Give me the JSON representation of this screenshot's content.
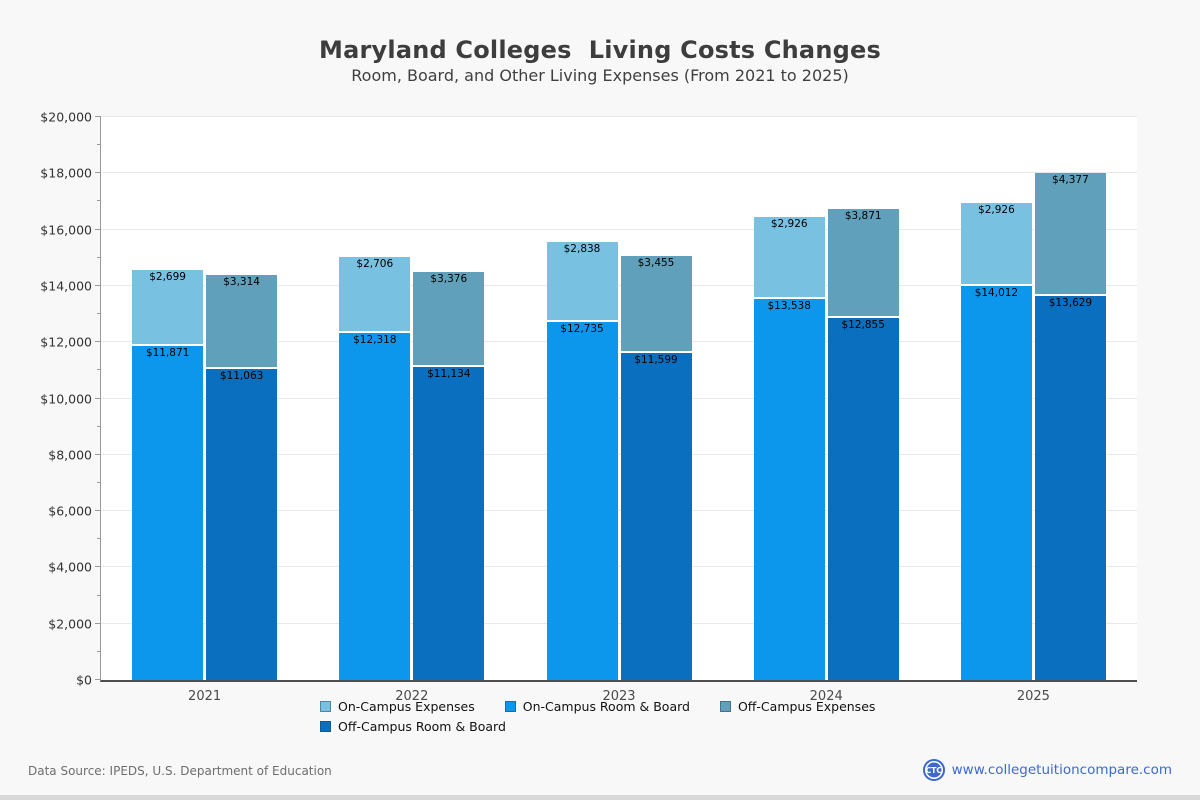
{
  "header": {
    "title": "Maryland Colleges  Living Costs Changes",
    "subtitle": "Room, Board, and Other Living Expenses (From 2021 to 2025)"
  },
  "chart_data": {
    "type": "bar",
    "stacked": true,
    "title": "Maryland Colleges  Living Costs Changes",
    "subtitle": "Room, Board, and Other Living Expenses (From 2021 to 2025)",
    "categories": [
      "2021",
      "2022",
      "2023",
      "2024",
      "2025"
    ],
    "series": [
      {
        "name": "On-Campus Room & Board",
        "stack": "on-campus",
        "color": "#0c97ec",
        "values": [
          11871,
          12318,
          12735,
          13538,
          14012
        ]
      },
      {
        "name": "On-Campus Expenses",
        "stack": "on-campus",
        "color": "#79c1e1",
        "values": [
          2699,
          2706,
          2838,
          2926,
          2926
        ]
      },
      {
        "name": "Off-Campus Room & Board",
        "stack": "off-campus",
        "color": "#0a6fbe",
        "values": [
          11063,
          11134,
          11599,
          12855,
          13629
        ]
      },
      {
        "name": "Off-Campus Expenses",
        "stack": "off-campus",
        "color": "#61a0ba",
        "values": [
          3314,
          3376,
          3455,
          3871,
          4377
        ]
      }
    ],
    "ylim": [
      0,
      20000
    ],
    "ytick_step": 2000,
    "yminor_step": 1000,
    "ytick_prefix": "$",
    "value_prefix": "$",
    "grid": "horizontal",
    "legend_position": "bottom",
    "xlabel": "",
    "ylabel": ""
  },
  "legend": {
    "items": [
      {
        "label": "On-Campus Expenses",
        "color": "#79c1e1"
      },
      {
        "label": "On-Campus Room & Board",
        "color": "#0c97ec"
      },
      {
        "label": "Off-Campus Expenses",
        "color": "#61a0ba"
      },
      {
        "label": "Off-Campus Room & Board",
        "color": "#0a6fbe"
      }
    ]
  },
  "footer": {
    "source": "Data Source: IPEDS, U.S. Department of Education",
    "logo_text": "CTC",
    "site": "www.collegetuitioncompare.com"
  }
}
